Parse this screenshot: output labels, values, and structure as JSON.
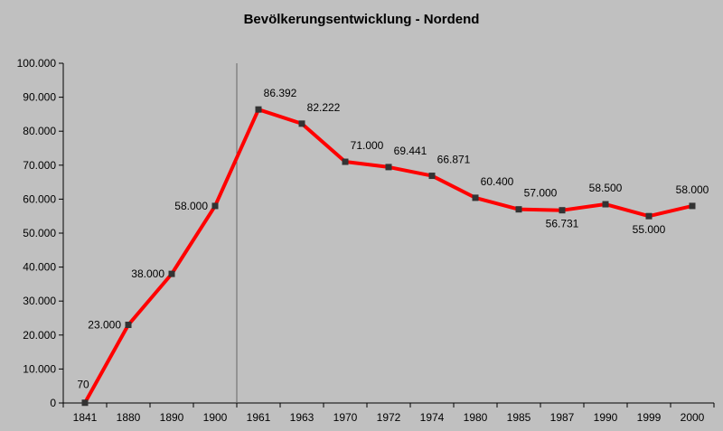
{
  "chart_data": {
    "type": "line",
    "title": "Bevölkerungsentwicklung - Nordend",
    "xlabel": "",
    "ylabel": "",
    "categories": [
      "1841",
      "1880",
      "1890",
      "1900",
      "1961",
      "1963",
      "1970",
      "1972",
      "1974",
      "1980",
      "1985",
      "1987",
      "1990",
      "1999",
      "2000"
    ],
    "values": [
      70,
      23000,
      38000,
      58000,
      86392,
      82222,
      71000,
      69441,
      66871,
      60400,
      57000,
      56731,
      58500,
      55000,
      58000
    ],
    "data_labels": [
      "70",
      "23.000",
      "38.000",
      "58.000",
      "86.392",
      "82.222",
      "71.000",
      "69.441",
      "66.871",
      "60.400",
      "57.000",
      "56.731",
      "58.500",
      "55.000",
      "58.000"
    ],
    "ylim": [
      0,
      100000
    ],
    "yticks": [
      "0",
      "10.000",
      "20.000",
      "30.000",
      "40.000",
      "50.000",
      "60.000",
      "70.000",
      "80.000",
      "90.000",
      "100.000"
    ],
    "grid": false,
    "legend": "none",
    "colors": {
      "line": "#ff0000",
      "marker": "#333333",
      "axis": "#000000",
      "background": "#c0c0c0"
    }
  }
}
